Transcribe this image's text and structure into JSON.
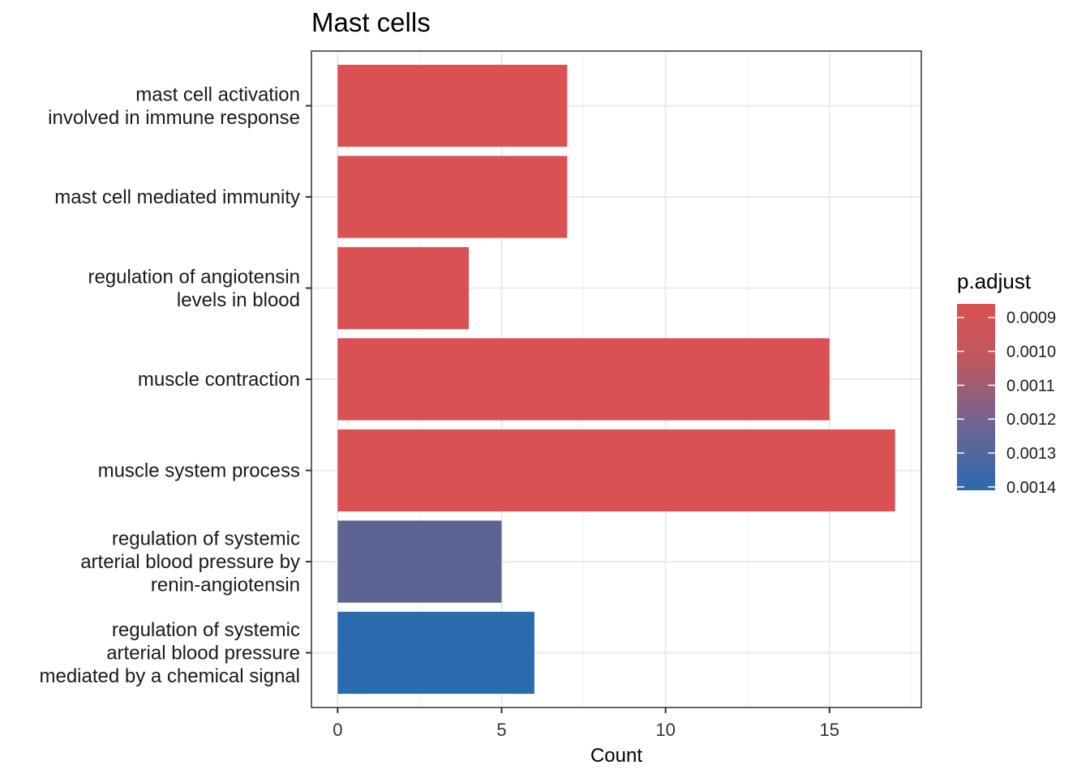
{
  "chart_data": {
    "type": "bar",
    "orientation": "horizontal",
    "title": "Mast cells",
    "xlabel": "Count",
    "ylabel": "",
    "xlim": [
      -0.8,
      17.8
    ],
    "x_ticks": [
      0,
      5,
      10,
      15
    ],
    "x_tick_labels": [
      "0",
      "5",
      "10",
      "15"
    ],
    "grid": true,
    "categories": [
      [
        "mast cell activation",
        "involved in immune response"
      ],
      [
        "mast cell mediated immunity"
      ],
      [
        "regulation of angiotensin",
        "levels in blood"
      ],
      [
        "muscle contraction"
      ],
      [
        "muscle system process"
      ],
      [
        "regulation of systemic",
        "arterial blood pressure by",
        "renin-angiotensin"
      ],
      [
        "regulation of systemic",
        "arterial blood pressure",
        "mediated by a chemical signal"
      ]
    ],
    "values": [
      7,
      7,
      4,
      15,
      17,
      5,
      6
    ],
    "p_adjust": [
      0.00086,
      0.00086,
      0.00086,
      0.00086,
      0.00086,
      0.00125,
      0.00141
    ],
    "legend": {
      "title": "p.adjust",
      "position": "right",
      "range": [
        0.00086,
        0.00141
      ],
      "breaks": [
        0.0009,
        0.001,
        0.0011,
        0.0012,
        0.0013,
        0.0014
      ],
      "labels": [
        "0.0009",
        "0.0010",
        "0.0011",
        "0.0012",
        "0.0013",
        "0.0014"
      ],
      "color_low": "#d95152",
      "color_high": "#2a6aad"
    }
  }
}
